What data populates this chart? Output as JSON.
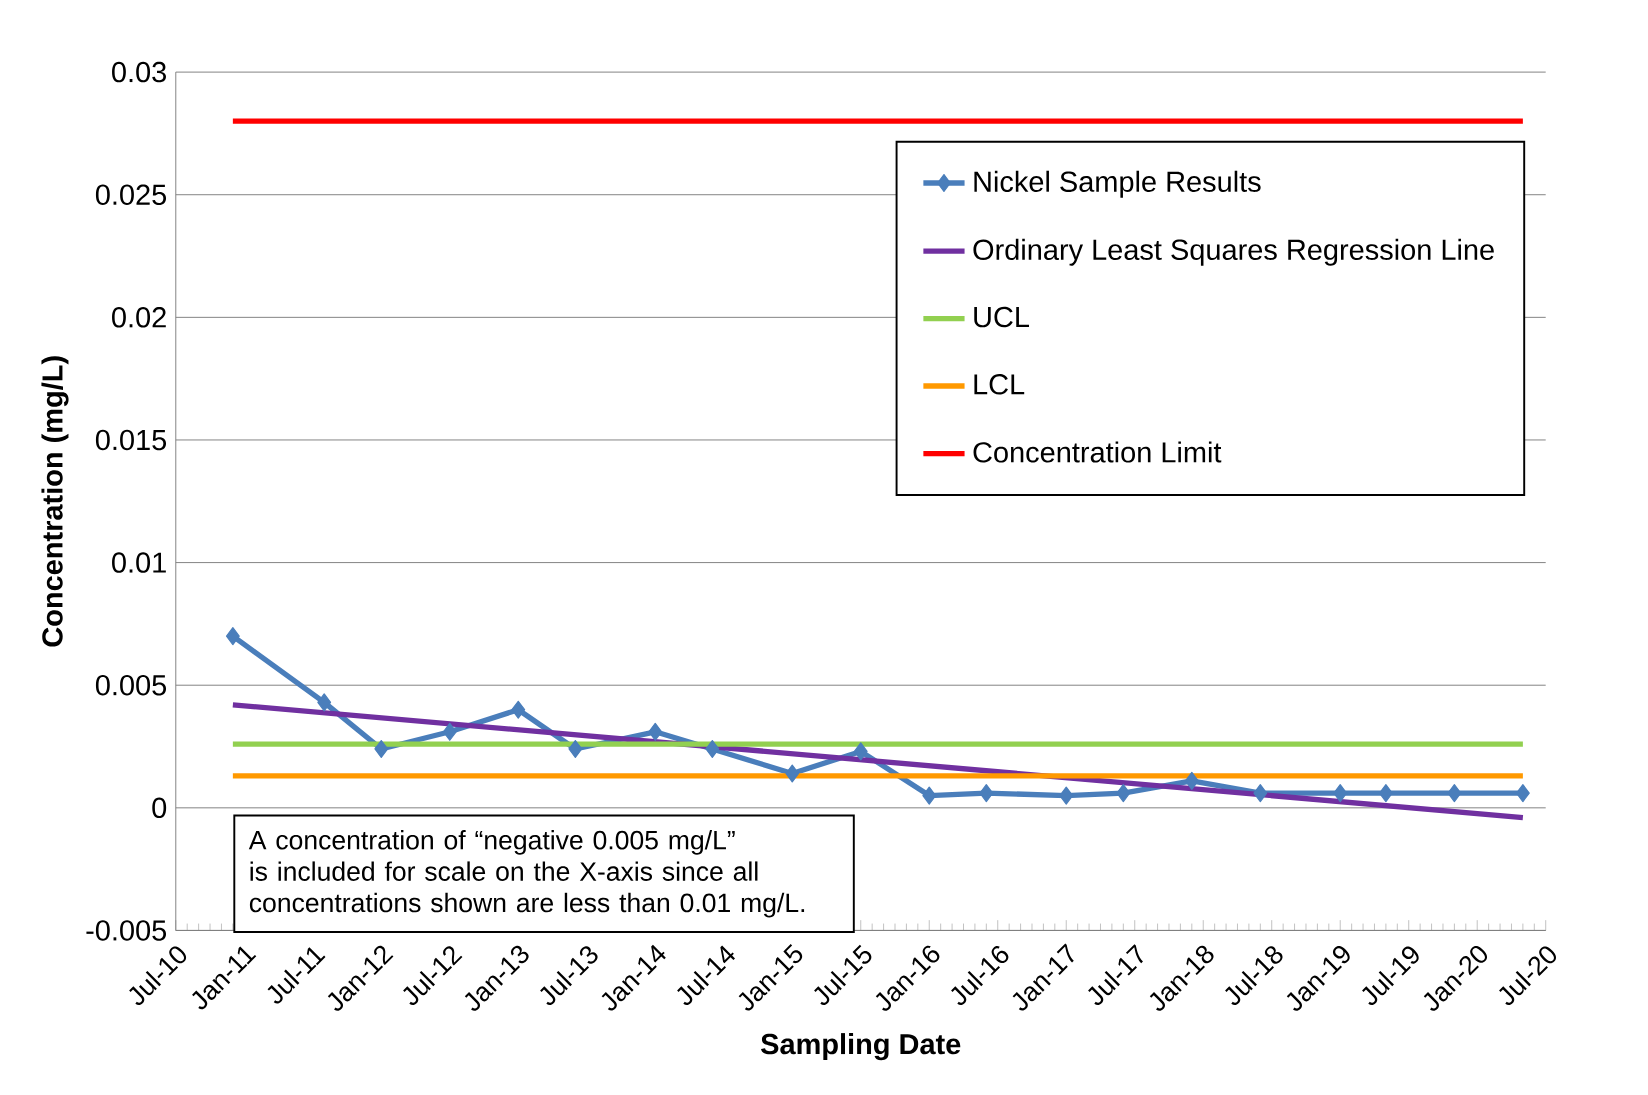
{
  "chart_data": {
    "type": "line",
    "xlabel": "Sampling Date",
    "ylabel": "Concentration (mg/L)",
    "xlim": [
      "2010-07",
      "2020-07"
    ],
    "xticks": [
      {
        "value": "2010-07",
        "label": "Jul-10"
      },
      {
        "value": "2011-01",
        "label": "Jan-11"
      },
      {
        "value": "2011-07",
        "label": "Jul-11"
      },
      {
        "value": "2012-01",
        "label": "Jan-12"
      },
      {
        "value": "2012-07",
        "label": "Jul-12"
      },
      {
        "value": "2013-01",
        "label": "Jan-13"
      },
      {
        "value": "2013-07",
        "label": "Jul-13"
      },
      {
        "value": "2014-01",
        "label": "Jan-14"
      },
      {
        "value": "2014-07",
        "label": "Jul-14"
      },
      {
        "value": "2015-01",
        "label": "Jan-15"
      },
      {
        "value": "2015-07",
        "label": "Jul-15"
      },
      {
        "value": "2016-01",
        "label": "Jan-16"
      },
      {
        "value": "2016-07",
        "label": "Jul-16"
      },
      {
        "value": "2017-01",
        "label": "Jan-17"
      },
      {
        "value": "2017-07",
        "label": "Jul-17"
      },
      {
        "value": "2018-01",
        "label": "Jan-18"
      },
      {
        "value": "2018-07",
        "label": "Jul-18"
      },
      {
        "value": "2019-01",
        "label": "Jan-19"
      },
      {
        "value": "2019-07",
        "label": "Jul-19"
      },
      {
        "value": "2020-01",
        "label": "Jan-20"
      },
      {
        "value": "2020-07",
        "label": "Jul-20"
      }
    ],
    "ylim": [
      -0.005,
      0.03
    ],
    "yticks": [
      -0.005,
      0,
      0.005,
      0.01,
      0.015,
      0.02,
      0.025,
      0.03
    ],
    "grid": "y",
    "legend": "top right",
    "series": [
      {
        "name": "Nickel Sample Results",
        "color": "#4a7ebb",
        "marker": "diamond",
        "x": [
          "2010-12",
          "2011-08",
          "2012-01",
          "2012-07",
          "2013-01",
          "2013-06",
          "2014-01",
          "2014-06",
          "2015-01",
          "2015-07",
          "2016-01",
          "2016-06",
          "2017-01",
          "2017-06",
          "2017-12",
          "2018-06",
          "2019-01",
          "2019-05",
          "2019-11",
          "2020-05"
        ],
        "values": [
          0.007,
          0.0043,
          0.0024,
          0.0031,
          0.004,
          0.0024,
          0.0031,
          0.0024,
          0.0014,
          0.0023,
          0.0005,
          0.0006,
          0.0005,
          0.0006,
          0.0011,
          0.0006,
          0.0006,
          0.0006,
          0.0006,
          0.0006
        ]
      },
      {
        "name": "Ordinary Least Squares Regression Line",
        "color": "#7030a0",
        "marker": "none",
        "x": [
          "2010-12",
          "2020-05"
        ],
        "values": [
          0.0042,
          -0.0004
        ]
      },
      {
        "name": "UCL",
        "color": "#92d050",
        "marker": "none",
        "x": [
          "2010-12",
          "2020-05"
        ],
        "values": [
          0.0026,
          0.0026
        ]
      },
      {
        "name": "LCL",
        "color": "#ff9900",
        "marker": "none",
        "x": [
          "2010-12",
          "2020-05"
        ],
        "values": [
          0.0013,
          0.0013
        ]
      },
      {
        "name": "Concentration Limit",
        "color": "#ff0000",
        "marker": "none",
        "x": [
          "2010-12",
          "2020-05"
        ],
        "values": [
          0.028,
          0.028
        ]
      }
    ],
    "annotations": [
      "A concentration of “negative 0.005 mg/L” is included for scale on the X-axis since all concentrations shown are less than 0.01 mg/L."
    ]
  }
}
